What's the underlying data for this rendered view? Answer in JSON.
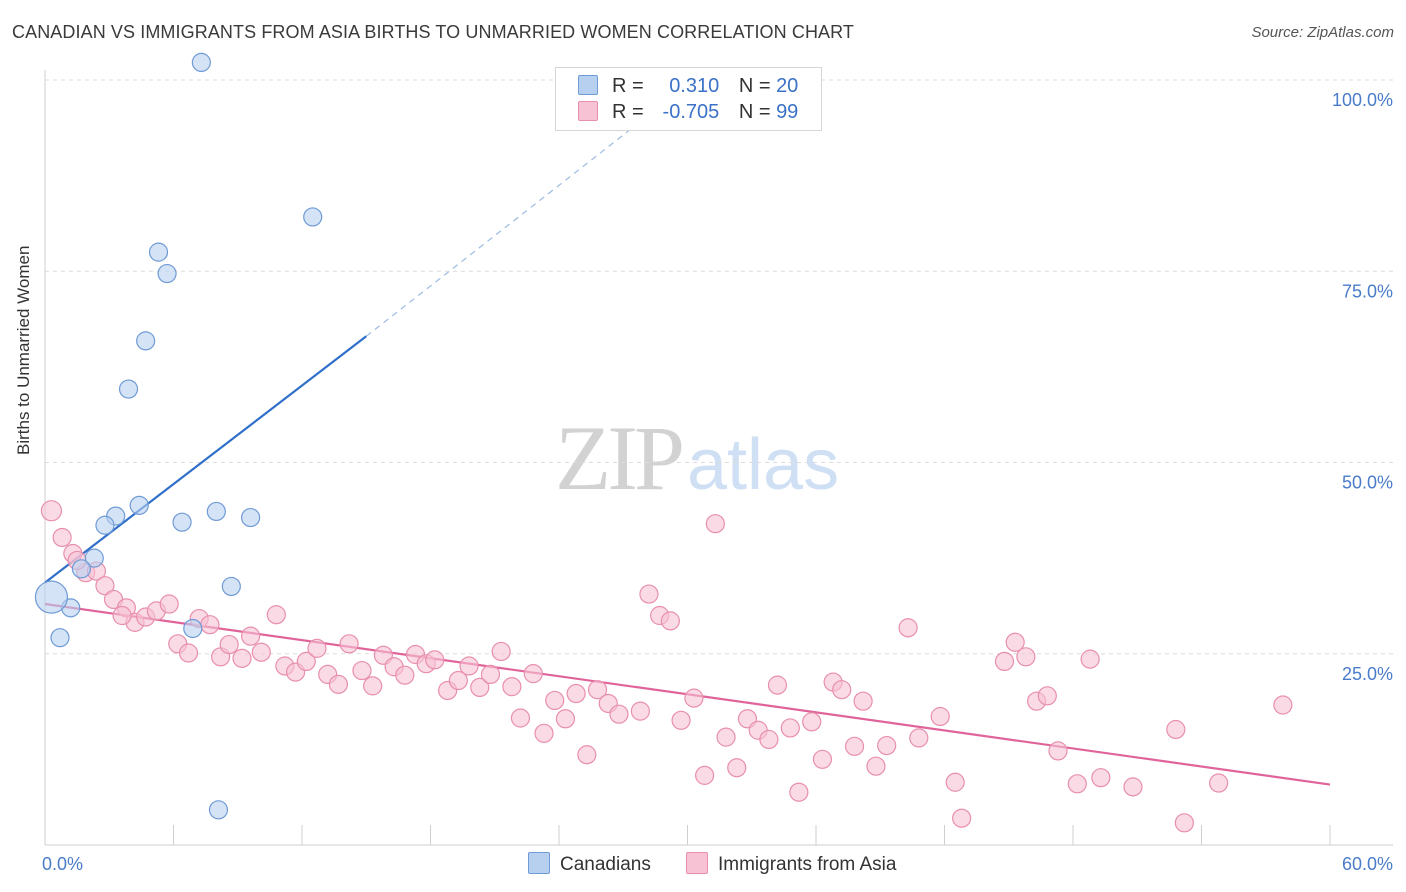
{
  "title": "CANADIAN VS IMMIGRANTS FROM ASIA BIRTHS TO UNMARRIED WOMEN CORRELATION CHART",
  "source": "Source: ZipAtlas.com",
  "watermark": {
    "part1": "ZIP",
    "part2": "atlas"
  },
  "legend_top": {
    "rows": [
      {
        "r_label": "R =",
        "r_value": "0.310",
        "n_label": "N =",
        "n_value": "20"
      },
      {
        "r_label": "R =",
        "r_value": "-0.705",
        "n_label": "N =",
        "n_value": "99"
      }
    ]
  },
  "colors": {
    "blue_fill": "#b8d0f0",
    "blue_stroke": "#6f9bd6",
    "blue_line": "#2f6fc9",
    "pink_fill": "#f7c2d3",
    "pink_stroke": "#e88fad",
    "pink_line": "#e0649a",
    "grid": "#dcdcdc",
    "tick_text": "#4a7cc9"
  },
  "chart_data": {
    "type": "scatter",
    "title": "CANADIAN VS IMMIGRANTS FROM ASIA BIRTHS TO UNMARRIED WOMEN CORRELATION CHART",
    "xlabel": "",
    "ylabel": "Births to Unmarried Women",
    "xlim": [
      0,
      60
    ],
    "ylim": [
      0,
      100
    ],
    "x_tick_labels": [
      "0.0%",
      "60.0%"
    ],
    "y_tick_labels": [
      "100.0%",
      "75.0%",
      "50.0%",
      "25.0%"
    ],
    "y_ticks": [
      100,
      75,
      50,
      25
    ],
    "grid": true,
    "legend_placement": "bottom",
    "series": [
      {
        "name": "Canadians",
        "color": "#b8d0f0",
        "points": [
          [
            7.3,
            102.3
          ],
          [
            12.5,
            82.1
          ],
          [
            5.3,
            77.5
          ],
          [
            5.7,
            74.7
          ],
          [
            4.7,
            65.9
          ],
          [
            3.9,
            59.6
          ],
          [
            4.4,
            44.4
          ],
          [
            8.0,
            43.6
          ],
          [
            9.6,
            42.8
          ],
          [
            6.4,
            42.2
          ],
          [
            3.3,
            43.0
          ],
          [
            2.8,
            41.8
          ],
          [
            2.3,
            37.5
          ],
          [
            1.7,
            36.1
          ],
          [
            8.7,
            33.8
          ],
          [
            1.2,
            31.0
          ],
          [
            0.3,
            32.4
          ],
          [
            6.9,
            28.3
          ],
          [
            0.7,
            27.1
          ],
          [
            8.1,
            4.6
          ]
        ],
        "trendline": {
          "x": [
            0,
            15
          ],
          "y": [
            34.3,
            66.5
          ],
          "dashed_extension_to": [
            28,
            95
          ]
        }
      },
      {
        "name": "Immigrants from Asia",
        "color": "#f7c2d3",
        "points": [
          [
            0.3,
            43.7
          ],
          [
            0.8,
            40.2
          ],
          [
            1.3,
            38.1
          ],
          [
            1.9,
            35.6
          ],
          [
            2.4,
            35.8
          ],
          [
            2.8,
            33.9
          ],
          [
            3.2,
            32.1
          ],
          [
            3.8,
            31.0
          ],
          [
            4.2,
            29.1
          ],
          [
            4.7,
            29.8
          ],
          [
            5.2,
            30.6
          ],
          [
            5.8,
            31.5
          ],
          [
            6.2,
            26.3
          ],
          [
            6.7,
            25.1
          ],
          [
            7.2,
            29.6
          ],
          [
            7.7,
            28.8
          ],
          [
            8.2,
            24.6
          ],
          [
            8.6,
            26.2
          ],
          [
            9.2,
            24.4
          ],
          [
            9.6,
            27.3
          ],
          [
            10.1,
            25.2
          ],
          [
            10.8,
            30.1
          ],
          [
            11.2,
            23.4
          ],
          [
            11.7,
            22.6
          ],
          [
            12.2,
            24.0
          ],
          [
            12.7,
            25.7
          ],
          [
            13.2,
            22.3
          ],
          [
            13.7,
            21.0
          ],
          [
            14.2,
            26.3
          ],
          [
            14.8,
            22.8
          ],
          [
            15.3,
            20.8
          ],
          [
            15.8,
            24.8
          ],
          [
            16.3,
            23.3
          ],
          [
            16.8,
            22.2
          ],
          [
            17.3,
            24.9
          ],
          [
            17.8,
            23.7
          ],
          [
            18.2,
            24.2
          ],
          [
            18.8,
            20.2
          ],
          [
            19.3,
            21.5
          ],
          [
            19.8,
            23.4
          ],
          [
            20.3,
            20.6
          ],
          [
            20.8,
            22.3
          ],
          [
            21.3,
            25.3
          ],
          [
            21.8,
            20.7
          ],
          [
            22.2,
            16.6
          ],
          [
            22.8,
            22.4
          ],
          [
            23.3,
            14.6
          ],
          [
            23.8,
            18.9
          ],
          [
            24.3,
            16.5
          ],
          [
            24.8,
            19.8
          ],
          [
            25.3,
            11.8
          ],
          [
            25.8,
            20.3
          ],
          [
            26.3,
            18.5
          ],
          [
            26.8,
            17.1
          ],
          [
            27.8,
            17.5
          ],
          [
            28.2,
            32.8
          ],
          [
            28.7,
            30.0
          ],
          [
            29.2,
            29.3
          ],
          [
            29.7,
            16.3
          ],
          [
            30.3,
            19.2
          ],
          [
            30.8,
            9.1
          ],
          [
            31.3,
            42.0
          ],
          [
            31.8,
            14.1
          ],
          [
            32.3,
            10.1
          ],
          [
            32.8,
            16.5
          ],
          [
            33.3,
            15.0
          ],
          [
            33.8,
            13.8
          ],
          [
            34.2,
            20.9
          ],
          [
            34.8,
            15.3
          ],
          [
            35.2,
            6.9
          ],
          [
            35.8,
            16.1
          ],
          [
            36.3,
            11.2
          ],
          [
            36.8,
            21.3
          ],
          [
            37.2,
            20.3
          ],
          [
            37.8,
            12.9
          ],
          [
            38.2,
            18.8
          ],
          [
            38.8,
            10.3
          ],
          [
            39.3,
            13.0
          ],
          [
            40.3,
            28.4
          ],
          [
            40.8,
            14.0
          ],
          [
            41.8,
            16.8
          ],
          [
            42.5,
            8.2
          ],
          [
            42.8,
            3.5
          ],
          [
            44.8,
            24.0
          ],
          [
            45.3,
            26.5
          ],
          [
            45.8,
            24.6
          ],
          [
            46.3,
            18.8
          ],
          [
            46.8,
            19.5
          ],
          [
            47.3,
            12.3
          ],
          [
            48.2,
            8.0
          ],
          [
            48.8,
            24.3
          ],
          [
            49.3,
            8.8
          ],
          [
            50.8,
            7.6
          ],
          [
            52.8,
            15.1
          ],
          [
            53.2,
            2.9
          ],
          [
            54.8,
            8.1
          ],
          [
            57.8,
            18.3
          ],
          [
            1.5,
            37.2
          ],
          [
            3.6,
            30.0
          ]
        ],
        "trendline": {
          "x": [
            0,
            60
          ],
          "y": [
            31.5,
            7.9
          ]
        }
      }
    ]
  },
  "bottom_legend": [
    {
      "label": "Canadians"
    },
    {
      "label": "Immigrants from Asia"
    }
  ]
}
